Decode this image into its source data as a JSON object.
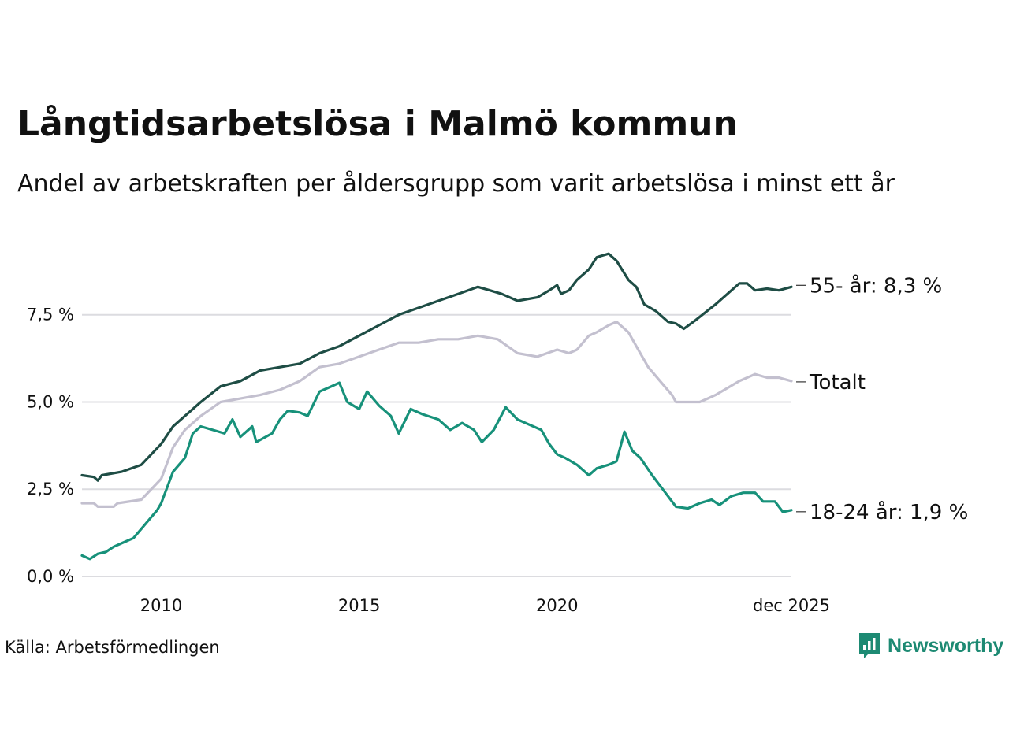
{
  "header": {
    "title": "Långtidsarbetslösa i Malmö kommun",
    "subtitle": "Andel av arbetskraften per åldersgrupp som varit arbetslösa i minst ett år"
  },
  "footer": {
    "source": "Källa: Arbetsförmedlingen",
    "brand": "Newsworthy"
  },
  "chart_data": {
    "type": "line",
    "title": "Långtidsarbetslösa i Malmö kommun",
    "subtitle": "Andel av arbetskraften per åldersgrupp som varit arbetslösa i minst ett år",
    "xlabel": "",
    "ylabel": "",
    "x_range": [
      2008.0,
      2025.917
    ],
    "ylim": [
      0,
      9.3
    ],
    "x_ticks": [
      {
        "value": 2010,
        "label": "2010"
      },
      {
        "value": 2015,
        "label": "2015"
      },
      {
        "value": 2020,
        "label": "2020"
      },
      {
        "value": 2025.917,
        "label": "dec 2025"
      }
    ],
    "y_ticks": [
      {
        "value": 0,
        "label": "0,0 %"
      },
      {
        "value": 2.5,
        "label": "2,5 %"
      },
      {
        "value": 5.0,
        "label": "5,0 %"
      },
      {
        "value": 7.5,
        "label": "7,5 %"
      }
    ],
    "grid": true,
    "legend": "direct labels at right end of lines",
    "series": [
      {
        "name": "55- år",
        "end_label": "55- år: 8,3 %",
        "color": "#1e4d45",
        "points": [
          [
            2008.0,
            2.9
          ],
          [
            2008.3,
            2.85
          ],
          [
            2008.4,
            2.75
          ],
          [
            2008.5,
            2.9
          ],
          [
            2009.0,
            3.0
          ],
          [
            2009.5,
            3.2
          ],
          [
            2010.0,
            3.8
          ],
          [
            2010.3,
            4.3
          ],
          [
            2010.6,
            4.6
          ],
          [
            2011.0,
            5.0
          ],
          [
            2011.5,
            5.45
          ],
          [
            2012.0,
            5.6
          ],
          [
            2012.5,
            5.9
          ],
          [
            2013.0,
            6.0
          ],
          [
            2013.5,
            6.1
          ],
          [
            2014.0,
            6.4
          ],
          [
            2014.5,
            6.6
          ],
          [
            2015.0,
            6.9
          ],
          [
            2015.5,
            7.2
          ],
          [
            2016.0,
            7.5
          ],
          [
            2016.5,
            7.7
          ],
          [
            2017.0,
            7.9
          ],
          [
            2017.5,
            8.1
          ],
          [
            2018.0,
            8.3
          ],
          [
            2018.3,
            8.2
          ],
          [
            2018.6,
            8.1
          ],
          [
            2019.0,
            7.9
          ],
          [
            2019.5,
            8.0
          ],
          [
            2019.8,
            8.2
          ],
          [
            2020.0,
            8.35
          ],
          [
            2020.1,
            8.1
          ],
          [
            2020.3,
            8.2
          ],
          [
            2020.5,
            8.5
          ],
          [
            2020.8,
            8.8
          ],
          [
            2021.0,
            9.15
          ],
          [
            2021.3,
            9.25
          ],
          [
            2021.5,
            9.05
          ],
          [
            2021.8,
            8.5
          ],
          [
            2022.0,
            8.3
          ],
          [
            2022.2,
            7.8
          ],
          [
            2022.5,
            7.6
          ],
          [
            2022.8,
            7.3
          ],
          [
            2023.0,
            7.25
          ],
          [
            2023.2,
            7.1
          ],
          [
            2023.5,
            7.35
          ],
          [
            2024.0,
            7.8
          ],
          [
            2024.3,
            8.1
          ],
          [
            2024.6,
            8.4
          ],
          [
            2024.8,
            8.4
          ],
          [
            2025.0,
            8.2
          ],
          [
            2025.3,
            8.25
          ],
          [
            2025.6,
            8.2
          ],
          [
            2025.917,
            8.3
          ]
        ]
      },
      {
        "name": "Totalt",
        "end_label": "Totalt",
        "color": "#c3c0cf",
        "points": [
          [
            2008.0,
            2.1
          ],
          [
            2008.3,
            2.1
          ],
          [
            2008.4,
            2.0
          ],
          [
            2008.8,
            2.0
          ],
          [
            2008.9,
            2.1
          ],
          [
            2009.5,
            2.2
          ],
          [
            2010.0,
            2.8
          ],
          [
            2010.3,
            3.7
          ],
          [
            2010.6,
            4.2
          ],
          [
            2011.0,
            4.6
          ],
          [
            2011.5,
            5.0
          ],
          [
            2012.0,
            5.1
          ],
          [
            2012.5,
            5.2
          ],
          [
            2013.0,
            5.35
          ],
          [
            2013.5,
            5.6
          ],
          [
            2014.0,
            6.0
          ],
          [
            2014.5,
            6.1
          ],
          [
            2015.0,
            6.3
          ],
          [
            2015.5,
            6.5
          ],
          [
            2016.0,
            6.7
          ],
          [
            2016.5,
            6.7
          ],
          [
            2017.0,
            6.8
          ],
          [
            2017.5,
            6.8
          ],
          [
            2018.0,
            6.9
          ],
          [
            2018.5,
            6.8
          ],
          [
            2019.0,
            6.4
          ],
          [
            2019.5,
            6.3
          ],
          [
            2020.0,
            6.5
          ],
          [
            2020.3,
            6.4
          ],
          [
            2020.5,
            6.5
          ],
          [
            2020.8,
            6.9
          ],
          [
            2021.0,
            7.0
          ],
          [
            2021.3,
            7.2
          ],
          [
            2021.5,
            7.3
          ],
          [
            2021.8,
            7.0
          ],
          [
            2022.0,
            6.6
          ],
          [
            2022.3,
            6.0
          ],
          [
            2022.6,
            5.6
          ],
          [
            2022.9,
            5.2
          ],
          [
            2023.0,
            5.0
          ],
          [
            2023.3,
            5.0
          ],
          [
            2023.6,
            5.0
          ],
          [
            2023.8,
            5.1
          ],
          [
            2024.0,
            5.2
          ],
          [
            2024.3,
            5.4
          ],
          [
            2024.6,
            5.6
          ],
          [
            2024.9,
            5.75
          ],
          [
            2025.0,
            5.8
          ],
          [
            2025.3,
            5.7
          ],
          [
            2025.6,
            5.7
          ],
          [
            2025.917,
            5.6
          ]
        ]
      },
      {
        "name": "18-24 år",
        "end_label": "18-24 år: 1,9 %",
        "color": "#17917a",
        "points": [
          [
            2008.0,
            0.6
          ],
          [
            2008.2,
            0.5
          ],
          [
            2008.4,
            0.65
          ],
          [
            2008.6,
            0.7
          ],
          [
            2008.8,
            0.85
          ],
          [
            2009.0,
            0.95
          ],
          [
            2009.3,
            1.1
          ],
          [
            2009.6,
            1.5
          ],
          [
            2009.9,
            1.9
          ],
          [
            2010.0,
            2.1
          ],
          [
            2010.3,
            3.0
          ],
          [
            2010.6,
            3.4
          ],
          [
            2010.8,
            4.1
          ],
          [
            2011.0,
            4.3
          ],
          [
            2011.3,
            4.2
          ],
          [
            2011.6,
            4.1
          ],
          [
            2011.8,
            4.5
          ],
          [
            2012.0,
            4.0
          ],
          [
            2012.3,
            4.3
          ],
          [
            2012.4,
            3.85
          ],
          [
            2012.8,
            4.1
          ],
          [
            2013.0,
            4.5
          ],
          [
            2013.2,
            4.75
          ],
          [
            2013.5,
            4.7
          ],
          [
            2013.7,
            4.6
          ],
          [
            2014.0,
            5.3
          ],
          [
            2014.3,
            5.45
          ],
          [
            2014.5,
            5.55
          ],
          [
            2014.7,
            5.0
          ],
          [
            2015.0,
            4.8
          ],
          [
            2015.2,
            5.3
          ],
          [
            2015.5,
            4.9
          ],
          [
            2015.8,
            4.6
          ],
          [
            2016.0,
            4.1
          ],
          [
            2016.3,
            4.8
          ],
          [
            2016.6,
            4.65
          ],
          [
            2017.0,
            4.5
          ],
          [
            2017.3,
            4.2
          ],
          [
            2017.6,
            4.4
          ],
          [
            2017.9,
            4.2
          ],
          [
            2018.1,
            3.85
          ],
          [
            2018.4,
            4.2
          ],
          [
            2018.7,
            4.85
          ],
          [
            2019.0,
            4.5
          ],
          [
            2019.3,
            4.35
          ],
          [
            2019.6,
            4.2
          ],
          [
            2019.8,
            3.8
          ],
          [
            2020.0,
            3.5
          ],
          [
            2020.2,
            3.4
          ],
          [
            2020.5,
            3.2
          ],
          [
            2020.8,
            2.9
          ],
          [
            2021.0,
            3.1
          ],
          [
            2021.3,
            3.2
          ],
          [
            2021.5,
            3.3
          ],
          [
            2021.7,
            4.15
          ],
          [
            2021.9,
            3.6
          ],
          [
            2022.1,
            3.4
          ],
          [
            2022.4,
            2.9
          ],
          [
            2022.6,
            2.6
          ],
          [
            2022.8,
            2.3
          ],
          [
            2023.0,
            2.0
          ],
          [
            2023.3,
            1.95
          ],
          [
            2023.6,
            2.1
          ],
          [
            2023.9,
            2.2
          ],
          [
            2024.1,
            2.05
          ],
          [
            2024.4,
            2.3
          ],
          [
            2024.7,
            2.4
          ],
          [
            2025.0,
            2.4
          ],
          [
            2025.2,
            2.15
          ],
          [
            2025.5,
            2.15
          ],
          [
            2025.7,
            1.85
          ],
          [
            2025.917,
            1.9
          ]
        ]
      }
    ]
  }
}
